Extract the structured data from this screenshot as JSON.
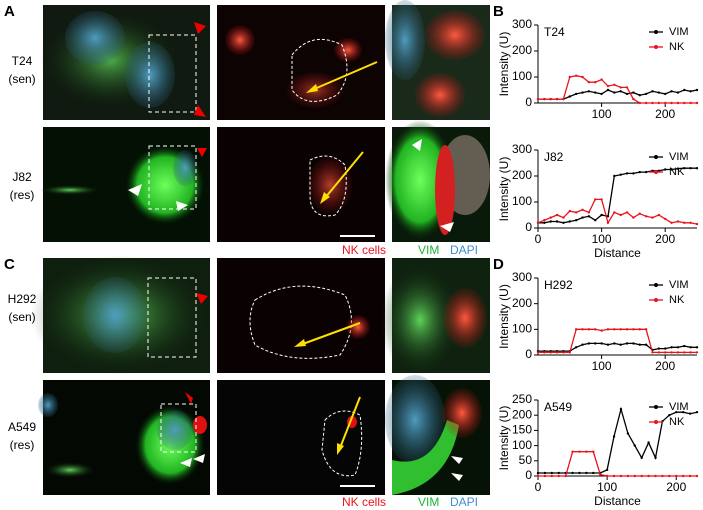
{
  "figure": {
    "panels": [
      "A",
      "B",
      "C",
      "D"
    ],
    "rows": [
      {
        "line": "T24",
        "status": "(sen)"
      },
      {
        "line": "J82",
        "status": "(res)"
      },
      {
        "line": "H292",
        "status": "(sen)"
      },
      {
        "line": "A549",
        "status": "(res)"
      }
    ],
    "legend": [
      "NK cells",
      "VIM",
      "DAPI"
    ]
  },
  "chart_data": [
    {
      "type": "line",
      "title": "T24",
      "ylabel": "Intensity (U)",
      "x": [
        0,
        10,
        20,
        30,
        40,
        50,
        60,
        70,
        80,
        90,
        100,
        110,
        120,
        130,
        140,
        150,
        160,
        170,
        180,
        190,
        200,
        210,
        220,
        230,
        240,
        250
      ],
      "xlim": [
        0,
        250
      ],
      "xticks": [
        100,
        200
      ],
      "ylim": [
        0,
        300
      ],
      "yticks": [
        0,
        100,
        200,
        300
      ],
      "series": [
        {
          "name": "VIM",
          "color": "#000000",
          "values": [
            15,
            15,
            15,
            15,
            15,
            25,
            35,
            40,
            45,
            40,
            35,
            50,
            40,
            45,
            35,
            40,
            30,
            35,
            45,
            40,
            35,
            45,
            40,
            50,
            45,
            50
          ]
        },
        {
          "name": "NK",
          "color": "#e8141c",
          "values": [
            15,
            15,
            15,
            15,
            15,
            100,
            105,
            100,
            80,
            80,
            90,
            65,
            70,
            60,
            60,
            15,
            0,
            0,
            0,
            0,
            0,
            0,
            0,
            0,
            0,
            0
          ]
        }
      ]
    },
    {
      "type": "line",
      "title": "J82",
      "ylabel": "Intensity (U)",
      "xlabel": "Distance",
      "x": [
        0,
        10,
        20,
        30,
        40,
        50,
        60,
        70,
        80,
        90,
        100,
        110,
        120,
        130,
        140,
        150,
        160,
        170,
        180,
        190,
        200,
        210,
        220,
        230,
        240,
        250
      ],
      "xlim": [
        0,
        250
      ],
      "xticks": [
        0,
        100,
        200
      ],
      "ylim": [
        0,
        300
      ],
      "yticks": [
        0,
        100,
        200,
        300
      ],
      "series": [
        {
          "name": "VIM",
          "color": "#000000",
          "values": [
            20,
            20,
            25,
            25,
            20,
            25,
            30,
            40,
            45,
            30,
            50,
            45,
            200,
            205,
            210,
            210,
            215,
            215,
            220,
            220,
            225,
            225,
            228,
            230,
            230,
            230
          ]
        },
        {
          "name": "NK",
          "color": "#e8141c",
          "values": [
            20,
            30,
            40,
            50,
            40,
            65,
            60,
            70,
            60,
            110,
            110,
            20,
            60,
            50,
            60,
            40,
            55,
            45,
            40,
            50,
            35,
            20,
            25,
            20,
            20,
            15
          ]
        }
      ]
    },
    {
      "type": "line",
      "title": "H292",
      "ylabel": "Intensity (U)",
      "x": [
        0,
        10,
        20,
        30,
        40,
        50,
        60,
        70,
        80,
        90,
        100,
        110,
        120,
        130,
        140,
        150,
        160,
        170,
        180,
        190,
        200,
        210,
        220,
        230,
        240,
        250
      ],
      "xlim": [
        0,
        250
      ],
      "xticks": [
        100,
        200
      ],
      "ylim": [
        0,
        300
      ],
      "yticks": [
        0,
        100,
        200,
        300
      ],
      "series": [
        {
          "name": "VIM",
          "color": "#000000",
          "values": [
            15,
            15,
            15,
            15,
            15,
            15,
            30,
            40,
            45,
            45,
            45,
            40,
            45,
            40,
            45,
            45,
            40,
            40,
            20,
            25,
            25,
            30,
            30,
            35,
            30,
            30
          ]
        },
        {
          "name": "NK",
          "color": "#e8141c",
          "values": [
            10,
            10,
            10,
            10,
            10,
            10,
            100,
            100,
            100,
            100,
            95,
            100,
            100,
            100,
            100,
            100,
            100,
            100,
            10,
            10,
            10,
            10,
            10,
            10,
            10,
            10
          ]
        }
      ]
    },
    {
      "type": "line",
      "title": "A549",
      "ylabel": "Intensity (U)",
      "xlabel": "Distance",
      "x": [
        0,
        10,
        20,
        30,
        40,
        50,
        60,
        70,
        80,
        90,
        100,
        110,
        120,
        130,
        140,
        150,
        160,
        170,
        180,
        190,
        200,
        210,
        220,
        230
      ],
      "xlim": [
        0,
        230
      ],
      "xticks": [
        0,
        100,
        200
      ],
      "ylim": [
        0,
        250
      ],
      "yticks": [
        0,
        50,
        100,
        150,
        200,
        250
      ],
      "series": [
        {
          "name": "VIM",
          "color": "#000000",
          "values": [
            10,
            10,
            10,
            10,
            10,
            10,
            10,
            10,
            10,
            10,
            20,
            130,
            220,
            140,
            100,
            60,
            110,
            60,
            180,
            200,
            210,
            210,
            205,
            210
          ]
        },
        {
          "name": "NK",
          "color": "#e8141c",
          "values": [
            0,
            0,
            0,
            0,
            0,
            80,
            80,
            80,
            80,
            5,
            0,
            0,
            0,
            0,
            0,
            0,
            0,
            0,
            0,
            0,
            0,
            0,
            0,
            0
          ]
        }
      ]
    }
  ]
}
